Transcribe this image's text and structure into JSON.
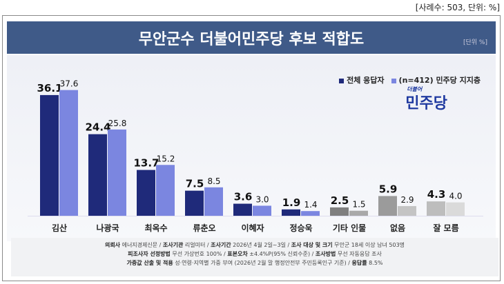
{
  "note": "[사례수: 503, 단위: %]",
  "title": "무안군수 더불어민주당 후보 적합도",
  "unit": "[단위 %]",
  "logo": {
    "small": "더불어",
    "main": "민주당"
  },
  "footer": {
    "l1": [
      [
        "의뢰사",
        "에너지경제신문"
      ],
      [
        "조사기관",
        "리얼미터"
      ],
      [
        "조사기간",
        "2026년 4월 2일~3일"
      ],
      [
        "조사 대상 및 크기",
        "무안군 18세 이상 남녀 503명"
      ]
    ],
    "l2": [
      [
        "피조사자 선정방법",
        "무선 가상번호 100%"
      ],
      [
        "표본오차",
        "±4.4%P(95% 신뢰수준)"
      ],
      [
        "조사방법",
        "무선 자동응답 조사"
      ]
    ],
    "l3": [
      [
        "가중값 산출 및 적용",
        "성·연령·지역별 가중 부여 (2026년 2월 말 행정안전부 주민등록인구 기준)"
      ],
      [
        "응답률",
        "8.5%"
      ]
    ]
  },
  "chart_data": {
    "type": "bar",
    "categories": [
      "김산",
      "나광국",
      "최옥수",
      "류춘오",
      "이혜자",
      "정승욱",
      "기타 인물",
      "없음",
      "잘 모름"
    ],
    "series": [
      {
        "name": "전체 응답자",
        "values": [
          36.1,
          24.4,
          13.7,
          7.5,
          3.6,
          1.9,
          2.5,
          5.9,
          4.3
        ],
        "color": "#1f2a7a"
      },
      {
        "name": "(n=412) 민주당 지지층",
        "values": [
          37.6,
          25.8,
          15.2,
          8.5,
          3.0,
          1.4,
          1.5,
          2.9,
          4.0
        ],
        "color": "#7b86e0"
      }
    ],
    "gray_colors": {
      "기타 인물": [
        "#7f7f7f",
        "#a9a9a9"
      ],
      "없음": [
        "#9b9b9b",
        "#c4c4c4"
      ],
      "잘 모름": [
        "#bdbdbd",
        "#dadada"
      ]
    },
    "legend": "top-right",
    "grid": false
  }
}
